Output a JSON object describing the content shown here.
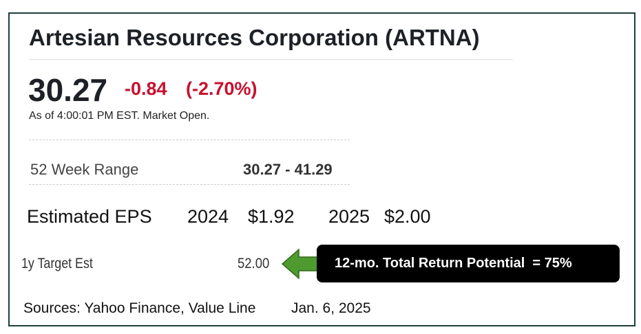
{
  "header": {
    "title": "Artesian Resources Corporation (ARTNA)"
  },
  "quote": {
    "price": "30.27",
    "change": "-0.84",
    "change_percent": "(-2.70%)",
    "as_of": "As of 4:00:01 PM EST. Market Open."
  },
  "range": {
    "label": "52 Week Range",
    "value": "30.27 - 41.29"
  },
  "eps": {
    "label": "Estimated EPS",
    "year1": "2024",
    "value1": "$1.92",
    "year2": "2025",
    "value2": "$2.00"
  },
  "target": {
    "label": "1y Target Est",
    "value": "52.00",
    "callout": "12-mo. Total Return Potential  = 75%"
  },
  "footer": {
    "sources": "Sources: Yahoo Finance, Value Line",
    "date": "Jan. 6, 2025"
  }
}
